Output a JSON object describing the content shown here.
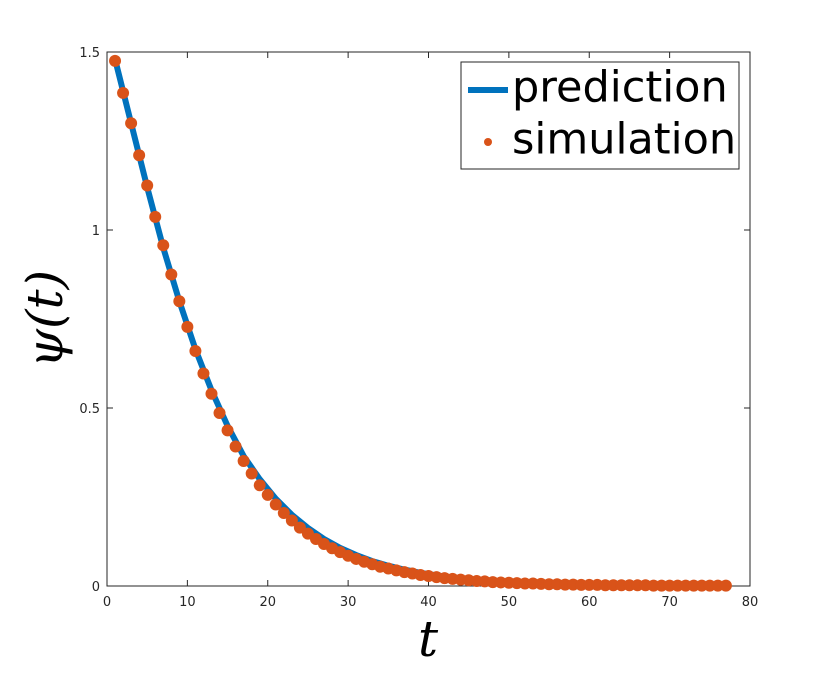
{
  "chart_data": {
    "type": "line",
    "xlabel": "t",
    "ylabel": "ψ(t)",
    "xlim": [
      0,
      80
    ],
    "xticks": [
      0,
      10,
      20,
      30,
      40,
      50,
      60,
      70,
      80
    ],
    "ylim": [
      0,
      1.5
    ],
    "yticks": [
      0,
      0.5,
      1,
      1.5
    ],
    "legend": "upper right",
    "series": [
      {
        "name": "prediction",
        "color": "#0072bd",
        "style": "line",
        "x": [
          1,
          3,
          5,
          7,
          9,
          11,
          13,
          15,
          17,
          19,
          21,
          23,
          25,
          27,
          29,
          31,
          33,
          35,
          37,
          39,
          41,
          43,
          45,
          47,
          49,
          51,
          53,
          55,
          57,
          59,
          61,
          63,
          65,
          67,
          69,
          71,
          73,
          75,
          77
        ],
        "values": [
          1.48,
          1.3,
          1.12,
          0.95,
          0.8,
          0.665,
          0.55,
          0.45,
          0.365,
          0.3,
          0.245,
          0.2,
          0.163,
          0.132,
          0.107,
          0.087,
          0.07,
          0.057,
          0.046,
          0.037,
          0.03,
          0.024,
          0.019,
          0.016,
          0.013,
          0.01,
          0.008,
          0.007,
          0.005,
          0.004,
          0.004,
          0.003,
          0.002,
          0.002,
          0.002,
          0.001,
          0.001,
          0.001,
          0.001
        ]
      },
      {
        "name": "simulation",
        "color": "#d95319",
        "style": "markers",
        "x": [
          1,
          2,
          3,
          4,
          5,
          6,
          7,
          8,
          9,
          10,
          11,
          12,
          13,
          14,
          15,
          16,
          17,
          18,
          19,
          20,
          21,
          22,
          23,
          24,
          25,
          26,
          27,
          28,
          29,
          30,
          31,
          32,
          33,
          34,
          35,
          36,
          37,
          38,
          39,
          40,
          41,
          42,
          43,
          44,
          45,
          46,
          47,
          48,
          49,
          50,
          51,
          52,
          53,
          54,
          55,
          56,
          57,
          58,
          59,
          60,
          61,
          62,
          63,
          64,
          65,
          66,
          67,
          68,
          69,
          70,
          71,
          72,
          73,
          74,
          75,
          76,
          77
        ],
        "values": [
          1.475,
          1.385,
          1.3,
          1.21,
          1.125,
          1.037,
          0.957,
          0.875,
          0.8,
          0.728,
          0.66,
          0.597,
          0.54,
          0.486,
          0.437,
          0.392,
          0.351,
          0.316,
          0.283,
          0.256,
          0.229,
          0.205,
          0.184,
          0.164,
          0.147,
          0.132,
          0.118,
          0.106,
          0.095,
          0.085,
          0.076,
          0.068,
          0.061,
          0.054,
          0.049,
          0.044,
          0.039,
          0.035,
          0.031,
          0.028,
          0.025,
          0.022,
          0.02,
          0.018,
          0.016,
          0.014,
          0.013,
          0.011,
          0.01,
          0.009,
          0.008,
          0.007,
          0.007,
          0.006,
          0.005,
          0.005,
          0.004,
          0.004,
          0.003,
          0.003,
          0.003,
          0.002,
          0.002,
          0.002,
          0.002,
          0.002,
          0.002,
          0.001,
          0.001,
          0.001,
          0.001,
          0.001,
          0.001,
          0.001,
          0.001,
          0.001,
          0.001
        ]
      }
    ]
  }
}
